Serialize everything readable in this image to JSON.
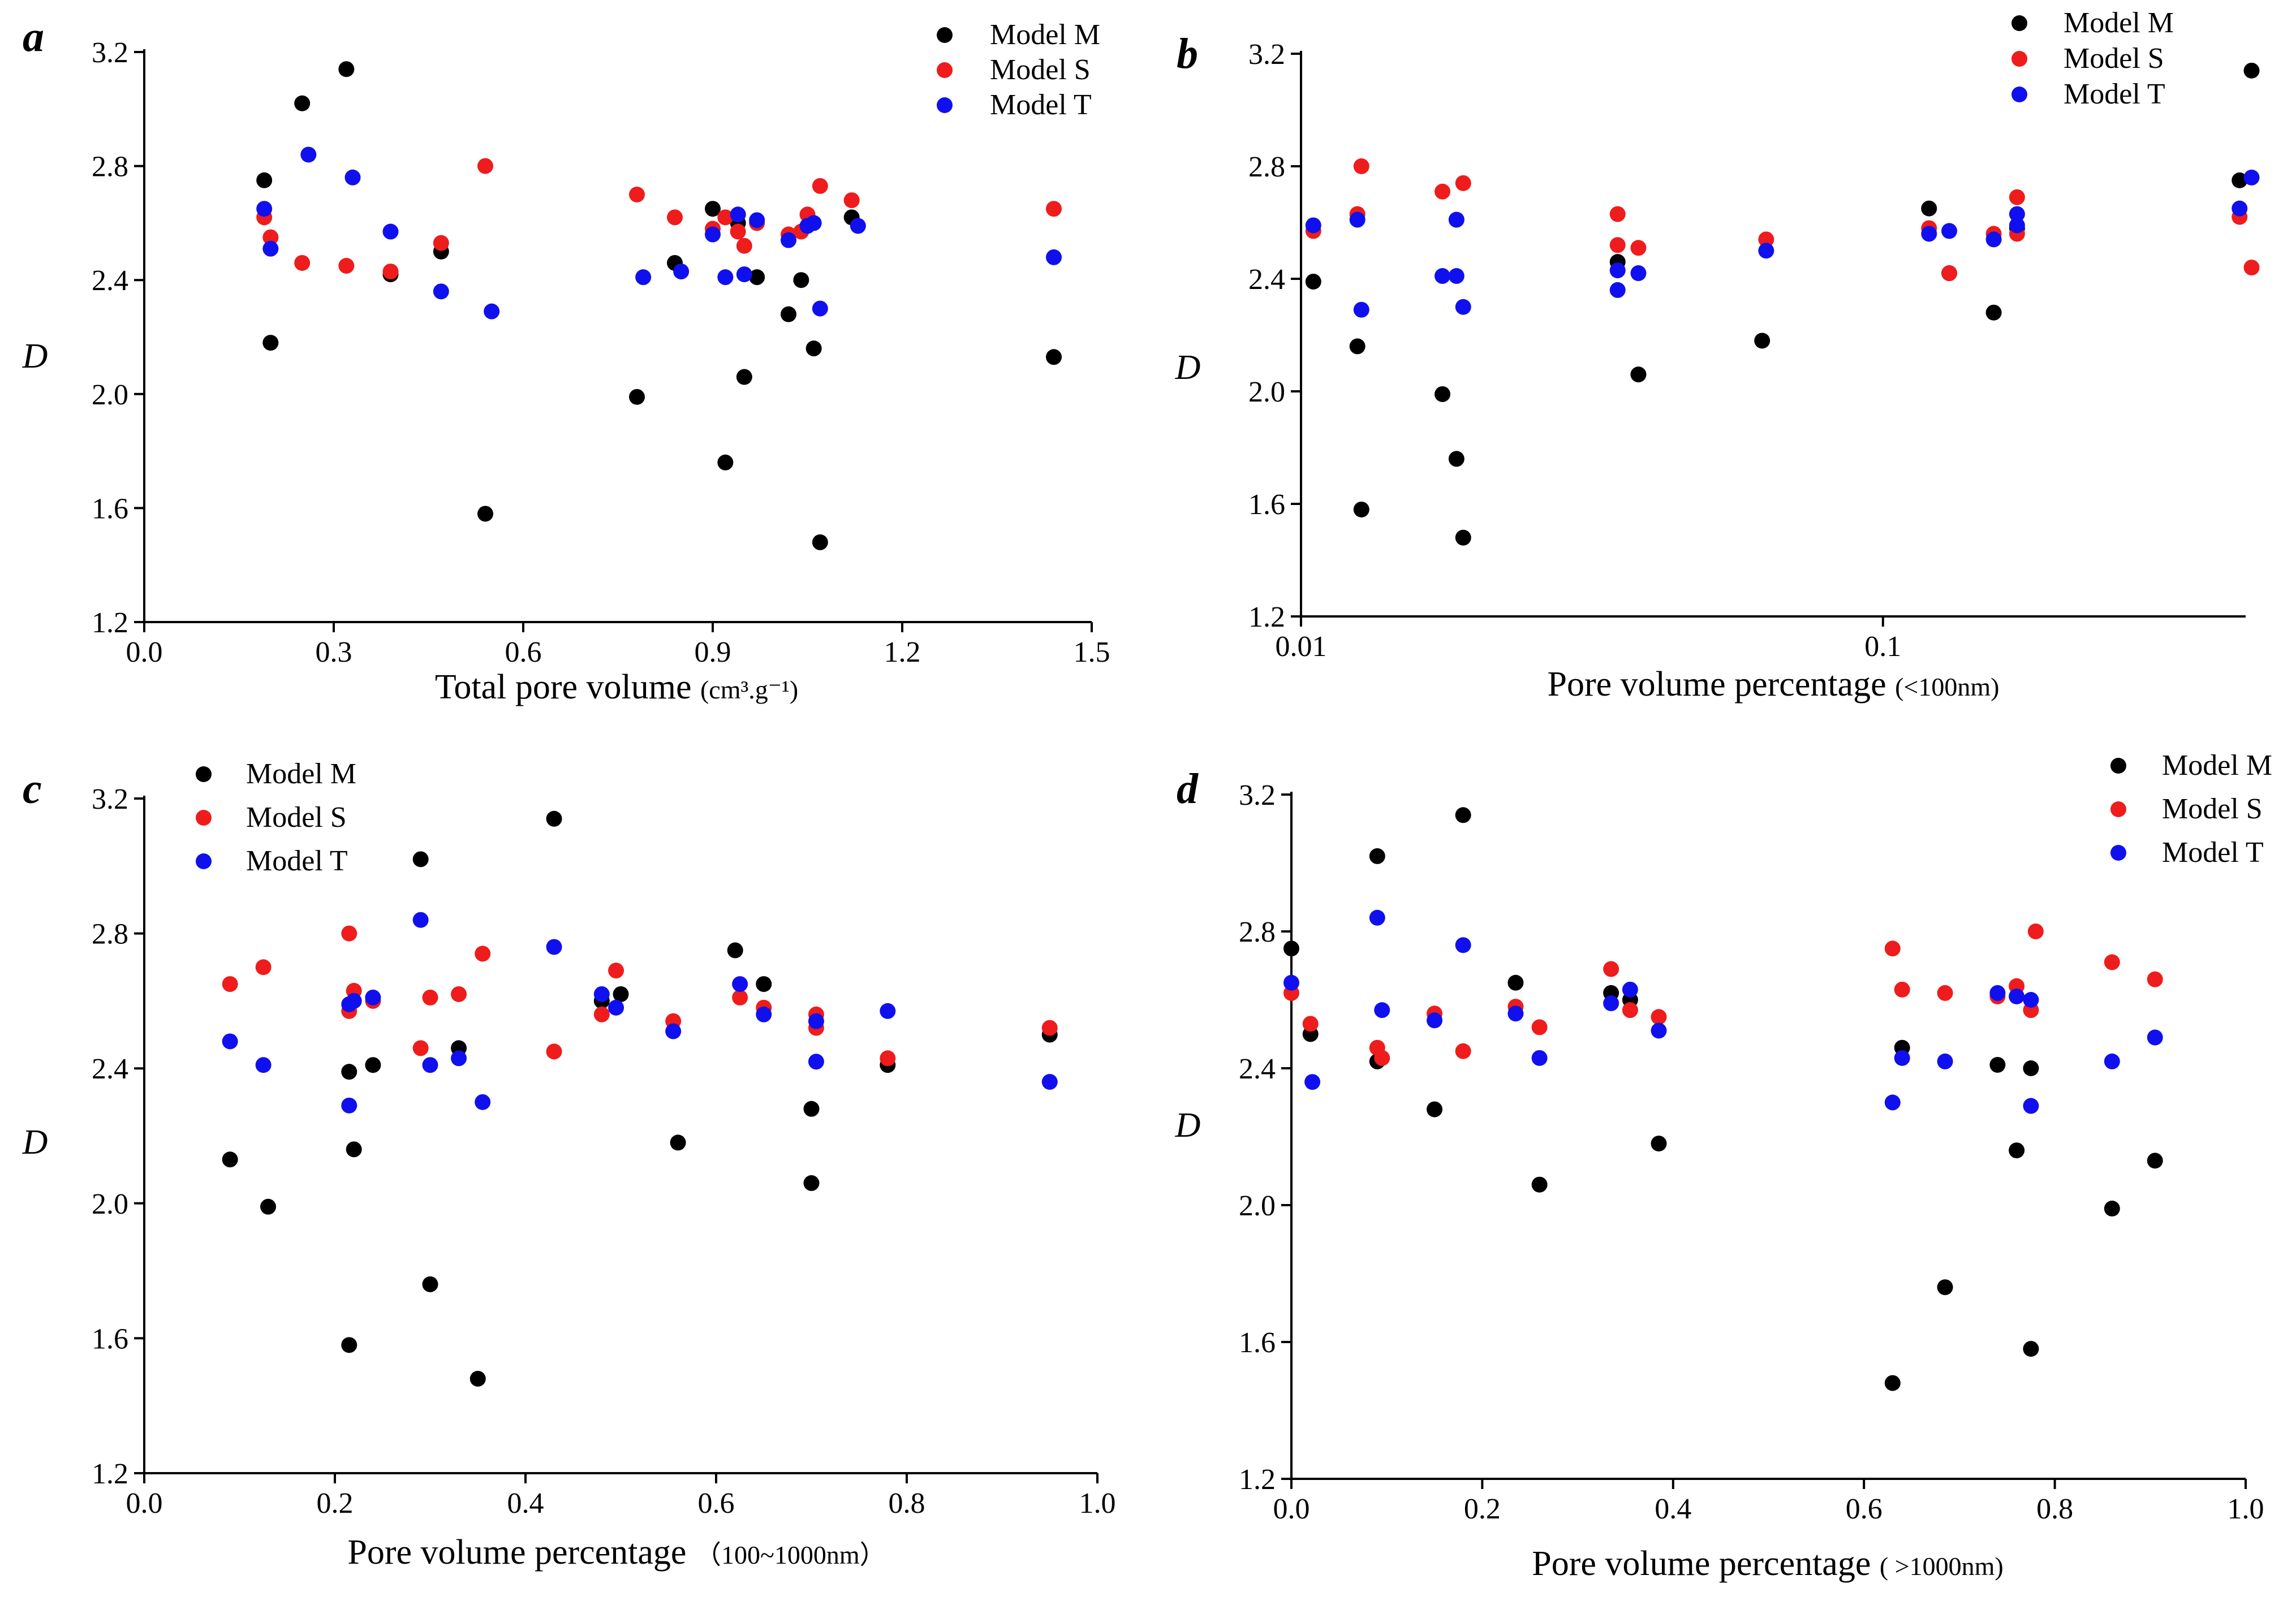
{
  "colors": {
    "Model M": "#000000",
    "Model S": "#ee1c1c",
    "Model T": "#1010ee"
  },
  "chart_data": [
    {
      "panel": "a",
      "type": "scatter",
      "xscale": "linear",
      "xlim": [
        0.0,
        1.5
      ],
      "ylim": [
        1.2,
        3.2
      ],
      "xticks": [
        0.0,
        0.3,
        0.6,
        0.9,
        1.2,
        1.5
      ],
      "xtick_labels": [
        "0.0",
        "0.3",
        "0.6",
        "0.9",
        "1.2",
        "1.5"
      ],
      "yticks": [
        1.2,
        1.6,
        2.0,
        2.4,
        2.8,
        3.2
      ],
      "ytick_labels": [
        "1.2",
        "1.6",
        "2.0",
        "2.4",
        "2.8",
        "3.2"
      ],
      "xlabel": "Total pore volume",
      "xlabel_unit": "(cm³.g⁻¹)",
      "ylabel": "D",
      "legend_position": "top-right",
      "series": [
        {
          "name": "Model M",
          "label": "Model M",
          "x": [
            0.19,
            0.2,
            0.25,
            0.32,
            0.39,
            0.47,
            0.54,
            0.78,
            0.84,
            0.9,
            0.92,
            0.94,
            0.95,
            0.97,
            1.02,
            1.04,
            1.06,
            1.07,
            1.12,
            1.44
          ],
          "y": [
            2.75,
            2.18,
            3.02,
            3.14,
            2.42,
            2.5,
            1.58,
            1.99,
            2.46,
            2.65,
            1.76,
            2.6,
            2.06,
            2.41,
            2.28,
            2.4,
            2.16,
            1.48,
            2.62,
            2.13
          ]
        },
        {
          "name": "Model S",
          "label": "Model S",
          "x": [
            0.19,
            0.2,
            0.25,
            0.32,
            0.39,
            0.47,
            0.54,
            0.78,
            0.84,
            0.9,
            0.92,
            0.94,
            0.95,
            0.97,
            1.02,
            1.04,
            1.05,
            1.07,
            1.12,
            1.44
          ],
          "y": [
            2.62,
            2.55,
            2.46,
            2.45,
            2.43,
            2.53,
            2.8,
            2.7,
            2.62,
            2.58,
            2.62,
            2.57,
            2.52,
            2.6,
            2.56,
            2.57,
            2.63,
            2.73,
            2.68,
            2.65
          ]
        },
        {
          "name": "Model T",
          "label": "Model T",
          "x": [
            0.19,
            0.2,
            0.26,
            0.33,
            0.39,
            0.47,
            0.55,
            0.79,
            0.85,
            0.9,
            0.92,
            0.94,
            0.95,
            0.97,
            1.02,
            1.05,
            1.06,
            1.07,
            1.13,
            1.44
          ],
          "y": [
            2.65,
            2.51,
            2.84,
            2.76,
            2.57,
            2.36,
            2.29,
            2.41,
            2.43,
            2.56,
            2.41,
            2.63,
            2.42,
            2.61,
            2.54,
            2.59,
            2.6,
            2.3,
            2.59,
            2.48
          ]
        }
      ]
    },
    {
      "panel": "b",
      "type": "scatter",
      "xscale": "log",
      "xlim": [
        0.01,
        0.42
      ],
      "ylim": [
        1.2,
        3.2
      ],
      "xticks": [
        0.01,
        0.1
      ],
      "xtick_labels": [
        "0.01",
        "0.1"
      ],
      "yticks": [
        1.2,
        1.6,
        2.0,
        2.4,
        2.8,
        3.2
      ],
      "ytick_labels": [
        "1.2",
        "1.6",
        "2.0",
        "2.4",
        "2.8",
        "3.2"
      ],
      "xlabel": "Pore volume percentage",
      "xlabel_unit": "(<100nm)",
      "ylabel": "D",
      "legend_position": "top-right",
      "series": [
        {
          "name": "Model M",
          "label": "Model  M",
          "x": [
            0.0105,
            0.0125,
            0.0127,
            0.0175,
            0.0185,
            0.019,
            0.035,
            0.038,
            0.062,
            0.12,
            0.13,
            0.155,
            0.17,
            0.41,
            0.43
          ],
          "y": [
            2.39,
            2.16,
            1.58,
            1.99,
            1.76,
            1.48,
            2.46,
            2.06,
            2.18,
            2.65,
            2.42,
            2.28,
            2.58,
            2.75,
            3.14
          ]
        },
        {
          "name": "Model S",
          "label": "Model  S",
          "x": [
            0.0105,
            0.0125,
            0.0127,
            0.0175,
            0.0185,
            0.019,
            0.035,
            0.035,
            0.038,
            0.063,
            0.12,
            0.13,
            0.155,
            0.17,
            0.17,
            0.41,
            0.43
          ],
          "y": [
            2.57,
            2.63,
            2.8,
            2.71,
            2.61,
            2.74,
            2.52,
            2.63,
            2.51,
            2.54,
            2.58,
            2.42,
            2.56,
            2.56,
            2.69,
            2.62,
            2.44
          ]
        },
        {
          "name": "Model T",
          "label": "Model  T",
          "x": [
            0.0105,
            0.0125,
            0.0127,
            0.0175,
            0.0185,
            0.0185,
            0.019,
            0.035,
            0.035,
            0.038,
            0.063,
            0.12,
            0.13,
            0.155,
            0.17,
            0.17,
            0.41,
            0.43
          ],
          "y": [
            2.59,
            2.61,
            2.29,
            2.41,
            2.41,
            2.61,
            2.3,
            2.43,
            2.36,
            2.42,
            2.5,
            2.56,
            2.57,
            2.54,
            2.59,
            2.63,
            2.65,
            2.76
          ]
        }
      ]
    },
    {
      "panel": "c",
      "type": "scatter",
      "xscale": "linear",
      "xlim": [
        0.0,
        1.0
      ],
      "ylim": [
        1.2,
        3.2
      ],
      "xticks": [
        0.0,
        0.2,
        0.4,
        0.6,
        0.8,
        1.0
      ],
      "xtick_labels": [
        "0.0",
        "0.2",
        "0.4",
        "0.6",
        "0.8",
        "1.0"
      ],
      "yticks": [
        1.2,
        1.6,
        2.0,
        2.4,
        2.8,
        3.2
      ],
      "ytick_labels": [
        "1.2",
        "1.6",
        "2.0",
        "2.4",
        "2.8",
        "3.2"
      ],
      "xlabel": "Pore volume percentage",
      "xlabel_unit": "（100~1000nm）",
      "ylabel": "D",
      "legend_position": "top-left",
      "series": [
        {
          "name": "Model M",
          "label": "Model M",
          "x": [
            0.09,
            0.13,
            0.215,
            0.215,
            0.22,
            0.24,
            0.29,
            0.3,
            0.33,
            0.35,
            0.43,
            0.48,
            0.5,
            0.56,
            0.62,
            0.65,
            0.7,
            0.7,
            0.78,
            0.95
          ],
          "y": [
            2.13,
            1.99,
            2.39,
            1.58,
            2.16,
            2.41,
            3.02,
            1.76,
            2.46,
            1.48,
            3.14,
            2.6,
            2.62,
            2.18,
            2.75,
            2.65,
            2.28,
            2.06,
            2.41,
            2.5
          ]
        },
        {
          "name": "Model S",
          "label": "Model S",
          "x": [
            0.09,
            0.125,
            0.215,
            0.215,
            0.22,
            0.24,
            0.29,
            0.3,
            0.33,
            0.355,
            0.43,
            0.48,
            0.495,
            0.555,
            0.625,
            0.65,
            0.705,
            0.705,
            0.78,
            0.95
          ],
          "y": [
            2.65,
            2.7,
            2.57,
            2.8,
            2.63,
            2.6,
            2.46,
            2.61,
            2.62,
            2.74,
            2.45,
            2.56,
            2.69,
            2.54,
            2.61,
            2.58,
            2.56,
            2.52,
            2.43,
            2.52
          ]
        },
        {
          "name": "Model T",
          "label": "Model T",
          "x": [
            0.09,
            0.125,
            0.215,
            0.215,
            0.22,
            0.24,
            0.29,
            0.3,
            0.33,
            0.355,
            0.43,
            0.48,
            0.495,
            0.555,
            0.625,
            0.65,
            0.705,
            0.705,
            0.78,
            0.95
          ],
          "y": [
            2.48,
            2.41,
            2.59,
            2.29,
            2.6,
            2.61,
            2.84,
            2.41,
            2.43,
            2.3,
            2.76,
            2.62,
            2.58,
            2.51,
            2.65,
            2.56,
            2.42,
            2.54,
            2.57,
            2.36
          ]
        }
      ]
    },
    {
      "panel": "d",
      "type": "scatter",
      "xscale": "linear",
      "xlim": [
        0.0,
        1.0
      ],
      "ylim": [
        1.2,
        3.2
      ],
      "xticks": [
        0.0,
        0.2,
        0.4,
        0.6,
        0.8,
        1.0
      ],
      "xtick_labels": [
        "0.0",
        "0.2",
        "0.4",
        "0.6",
        "0.8",
        "1.0"
      ],
      "yticks": [
        1.2,
        1.6,
        2.0,
        2.4,
        2.8,
        3.2
      ],
      "ytick_labels": [
        "1.2",
        "1.6",
        "2.0",
        "2.4",
        "2.8",
        "3.2"
      ],
      "xlabel": "Pore volume percentage",
      "xlabel_unit": "( >1000nm)",
      "ylabel": "D",
      "legend_position": "top-right",
      "series": [
        {
          "name": "Model M",
          "label": "Model M",
          "x": [
            0.0,
            0.02,
            0.09,
            0.09,
            0.15,
            0.18,
            0.235,
            0.26,
            0.335,
            0.355,
            0.385,
            0.63,
            0.64,
            0.685,
            0.74,
            0.76,
            0.775,
            0.775,
            0.86,
            0.905
          ],
          "y": [
            2.75,
            2.5,
            3.02,
            2.42,
            2.28,
            3.14,
            2.65,
            2.06,
            2.62,
            2.6,
            2.18,
            1.48,
            2.46,
            1.76,
            2.41,
            2.16,
            2.4,
            1.58,
            1.99,
            2.13
          ]
        },
        {
          "name": "Model S",
          "label": "Model S",
          "x": [
            0.0,
            0.02,
            0.09,
            0.095,
            0.15,
            0.18,
            0.235,
            0.26,
            0.335,
            0.355,
            0.385,
            0.63,
            0.64,
            0.685,
            0.74,
            0.76,
            0.775,
            0.78,
            0.86,
            0.905
          ],
          "y": [
            2.62,
            2.53,
            2.46,
            2.43,
            2.56,
            2.45,
            2.58,
            2.52,
            2.69,
            2.57,
            2.55,
            2.75,
            2.63,
            2.62,
            2.61,
            2.64,
            2.57,
            2.8,
            2.71,
            2.66
          ]
        },
        {
          "name": "Model T",
          "label": "Model T",
          "x": [
            0.0,
            0.022,
            0.095,
            0.09,
            0.15,
            0.18,
            0.235,
            0.26,
            0.335,
            0.355,
            0.385,
            0.63,
            0.64,
            0.685,
            0.74,
            0.76,
            0.775,
            0.775,
            0.86,
            0.905
          ],
          "y": [
            2.65,
            2.36,
            2.57,
            2.84,
            2.54,
            2.76,
            2.56,
            2.43,
            2.59,
            2.63,
            2.51,
            2.3,
            2.43,
            2.42,
            2.62,
            2.61,
            2.29,
            2.6,
            2.42,
            2.49
          ]
        }
      ]
    }
  ]
}
